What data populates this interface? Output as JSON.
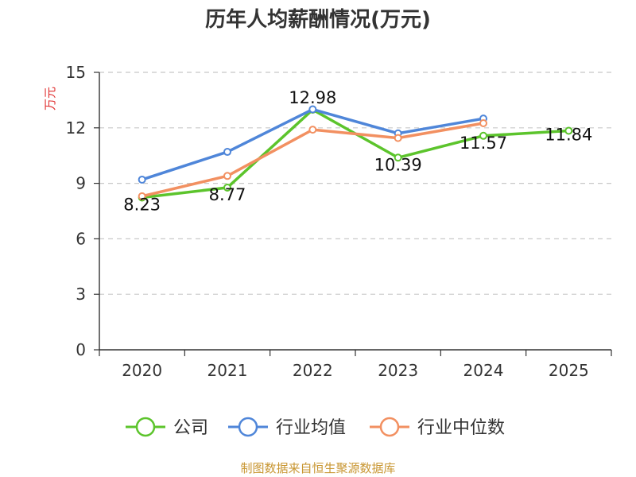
{
  "chart_data": {
    "type": "line",
    "title": "历年人均薪酬情况(万元)",
    "ylabel": "万元",
    "xlabel": "",
    "categories": [
      "2020",
      "2021",
      "2022",
      "2023",
      "2024",
      "2025"
    ],
    "ylim": [
      0,
      15
    ],
    "yticks": [
      0,
      3,
      6,
      9,
      12,
      15
    ],
    "grid": true,
    "legend_position": "bottom",
    "series": [
      {
        "name": "公司",
        "color": "#5cc42c",
        "values": [
          8.23,
          8.77,
          12.98,
          10.39,
          11.57,
          11.84
        ],
        "show_labels": true
      },
      {
        "name": "行业均值",
        "color": "#4f86d9",
        "values": [
          9.2,
          10.7,
          13.0,
          11.7,
          12.5,
          null
        ],
        "show_labels": false
      },
      {
        "name": "行业中位数",
        "color": "#f29061",
        "values": [
          8.3,
          9.4,
          11.9,
          11.45,
          12.25,
          null
        ],
        "show_labels": false
      }
    ]
  },
  "source": "制图数据来自恒生聚源数据库"
}
